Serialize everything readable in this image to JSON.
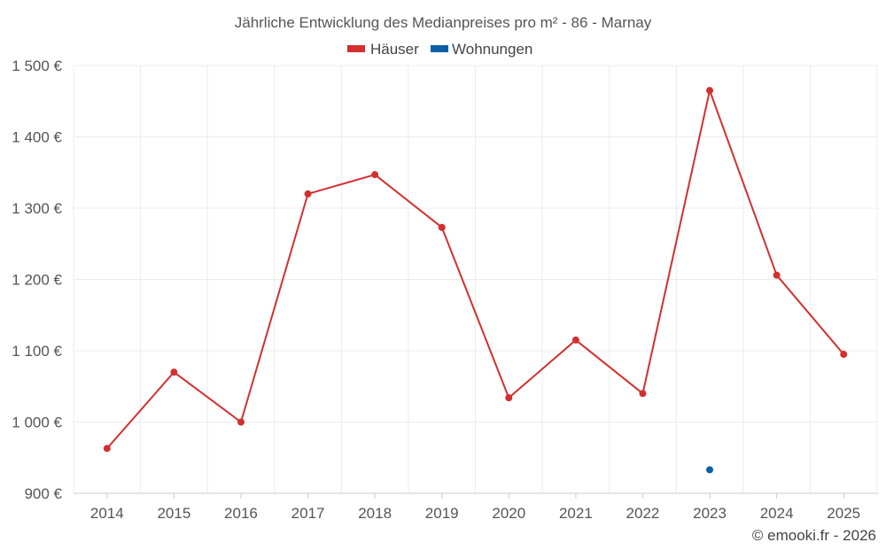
{
  "chart_data": {
    "type": "line",
    "title": "Jährliche Entwicklung des Medianpreises pro m² - 86 - Marnay",
    "xlabel": "",
    "ylabel": "",
    "x": [
      "2014",
      "2015",
      "2016",
      "2017",
      "2018",
      "2019",
      "2020",
      "2021",
      "2022",
      "2023",
      "2024",
      "2025"
    ],
    "ylim": [
      900,
      1500
    ],
    "yticks": [
      900,
      1000,
      1100,
      1200,
      1300,
      1400,
      1500
    ],
    "ytick_labels": [
      "900 €",
      "1 000 €",
      "1 100 €",
      "1 200 €",
      "1 300 €",
      "1 400 €",
      "1 500 €"
    ],
    "grid": true,
    "legend_position": "top-center",
    "series": [
      {
        "name": "Häuser",
        "color": "#d32f2f",
        "values": [
          963,
          1070,
          1000,
          1320,
          1347,
          1273,
          1034,
          1115,
          1040,
          1465,
          1206,
          1095
        ]
      },
      {
        "name": "Wohnungen",
        "color": "#0b5fa5",
        "values": [
          null,
          null,
          null,
          null,
          null,
          null,
          null,
          null,
          null,
          933,
          null,
          null
        ]
      }
    ]
  },
  "footer": {
    "credit": "© emooki.fr - 2026"
  }
}
